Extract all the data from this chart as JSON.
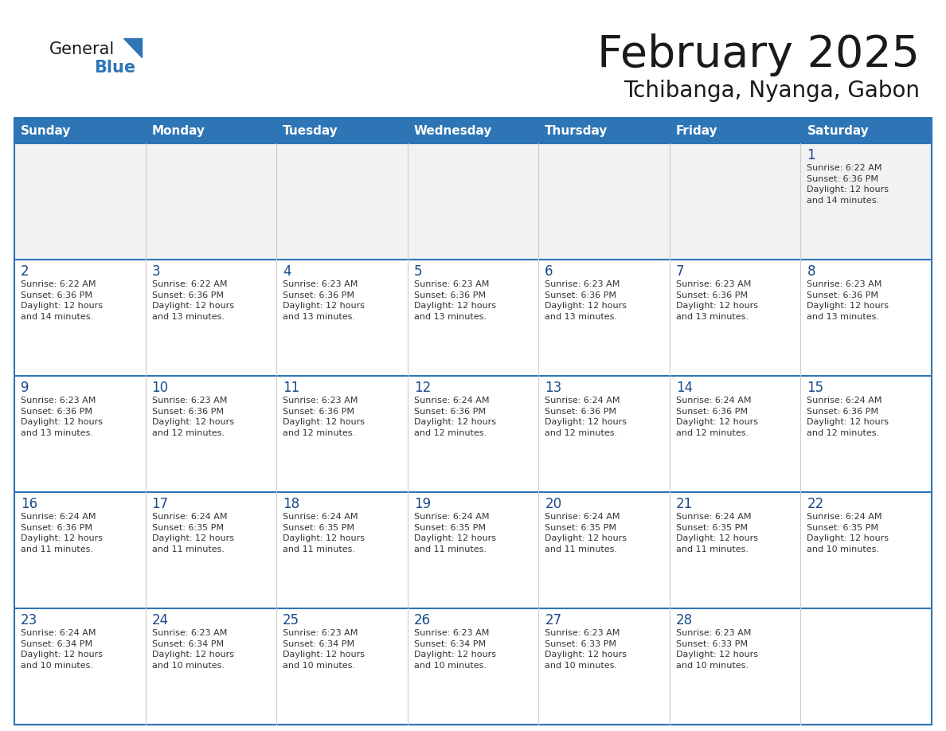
{
  "title": "February 2025",
  "subtitle": "Tchibanga, Nyanga, Gabon",
  "days_of_week": [
    "Sunday",
    "Monday",
    "Tuesday",
    "Wednesday",
    "Thursday",
    "Friday",
    "Saturday"
  ],
  "header_bg": "#2E75B6",
  "header_text": "#FFFFFF",
  "cell_bg_white": "#FFFFFF",
  "cell_bg_gray": "#F2F2F2",
  "border_color": "#2E75B6",
  "cell_border_color": "#AAAAAA",
  "title_color": "#1a1a1a",
  "subtitle_color": "#1a1a1a",
  "cell_text_color": "#333333",
  "day_num_color": "#1a4a8a",
  "logo_general_color": "#1a1a1a",
  "logo_blue_color": "#2E75B6",
  "logo_triangle_color": "#2E75B6",
  "weeks": [
    [
      {
        "day": null,
        "info": null
      },
      {
        "day": null,
        "info": null
      },
      {
        "day": null,
        "info": null
      },
      {
        "day": null,
        "info": null
      },
      {
        "day": null,
        "info": null
      },
      {
        "day": null,
        "info": null
      },
      {
        "day": 1,
        "info": "Sunrise: 6:22 AM\nSunset: 6:36 PM\nDaylight: 12 hours\nand 14 minutes."
      }
    ],
    [
      {
        "day": 2,
        "info": "Sunrise: 6:22 AM\nSunset: 6:36 PM\nDaylight: 12 hours\nand 14 minutes."
      },
      {
        "day": 3,
        "info": "Sunrise: 6:22 AM\nSunset: 6:36 PM\nDaylight: 12 hours\nand 13 minutes."
      },
      {
        "day": 4,
        "info": "Sunrise: 6:23 AM\nSunset: 6:36 PM\nDaylight: 12 hours\nand 13 minutes."
      },
      {
        "day": 5,
        "info": "Sunrise: 6:23 AM\nSunset: 6:36 PM\nDaylight: 12 hours\nand 13 minutes."
      },
      {
        "day": 6,
        "info": "Sunrise: 6:23 AM\nSunset: 6:36 PM\nDaylight: 12 hours\nand 13 minutes."
      },
      {
        "day": 7,
        "info": "Sunrise: 6:23 AM\nSunset: 6:36 PM\nDaylight: 12 hours\nand 13 minutes."
      },
      {
        "day": 8,
        "info": "Sunrise: 6:23 AM\nSunset: 6:36 PM\nDaylight: 12 hours\nand 13 minutes."
      }
    ],
    [
      {
        "day": 9,
        "info": "Sunrise: 6:23 AM\nSunset: 6:36 PM\nDaylight: 12 hours\nand 13 minutes."
      },
      {
        "day": 10,
        "info": "Sunrise: 6:23 AM\nSunset: 6:36 PM\nDaylight: 12 hours\nand 12 minutes."
      },
      {
        "day": 11,
        "info": "Sunrise: 6:23 AM\nSunset: 6:36 PM\nDaylight: 12 hours\nand 12 minutes."
      },
      {
        "day": 12,
        "info": "Sunrise: 6:24 AM\nSunset: 6:36 PM\nDaylight: 12 hours\nand 12 minutes."
      },
      {
        "day": 13,
        "info": "Sunrise: 6:24 AM\nSunset: 6:36 PM\nDaylight: 12 hours\nand 12 minutes."
      },
      {
        "day": 14,
        "info": "Sunrise: 6:24 AM\nSunset: 6:36 PM\nDaylight: 12 hours\nand 12 minutes."
      },
      {
        "day": 15,
        "info": "Sunrise: 6:24 AM\nSunset: 6:36 PM\nDaylight: 12 hours\nand 12 minutes."
      }
    ],
    [
      {
        "day": 16,
        "info": "Sunrise: 6:24 AM\nSunset: 6:36 PM\nDaylight: 12 hours\nand 11 minutes."
      },
      {
        "day": 17,
        "info": "Sunrise: 6:24 AM\nSunset: 6:35 PM\nDaylight: 12 hours\nand 11 minutes."
      },
      {
        "day": 18,
        "info": "Sunrise: 6:24 AM\nSunset: 6:35 PM\nDaylight: 12 hours\nand 11 minutes."
      },
      {
        "day": 19,
        "info": "Sunrise: 6:24 AM\nSunset: 6:35 PM\nDaylight: 12 hours\nand 11 minutes."
      },
      {
        "day": 20,
        "info": "Sunrise: 6:24 AM\nSunset: 6:35 PM\nDaylight: 12 hours\nand 11 minutes."
      },
      {
        "day": 21,
        "info": "Sunrise: 6:24 AM\nSunset: 6:35 PM\nDaylight: 12 hours\nand 11 minutes."
      },
      {
        "day": 22,
        "info": "Sunrise: 6:24 AM\nSunset: 6:35 PM\nDaylight: 12 hours\nand 10 minutes."
      }
    ],
    [
      {
        "day": 23,
        "info": "Sunrise: 6:24 AM\nSunset: 6:34 PM\nDaylight: 12 hours\nand 10 minutes."
      },
      {
        "day": 24,
        "info": "Sunrise: 6:23 AM\nSunset: 6:34 PM\nDaylight: 12 hours\nand 10 minutes."
      },
      {
        "day": 25,
        "info": "Sunrise: 6:23 AM\nSunset: 6:34 PM\nDaylight: 12 hours\nand 10 minutes."
      },
      {
        "day": 26,
        "info": "Sunrise: 6:23 AM\nSunset: 6:34 PM\nDaylight: 12 hours\nand 10 minutes."
      },
      {
        "day": 27,
        "info": "Sunrise: 6:23 AM\nSunset: 6:33 PM\nDaylight: 12 hours\nand 10 minutes."
      },
      {
        "day": 28,
        "info": "Sunrise: 6:23 AM\nSunset: 6:33 PM\nDaylight: 12 hours\nand 10 minutes."
      },
      {
        "day": null,
        "info": null
      }
    ]
  ]
}
